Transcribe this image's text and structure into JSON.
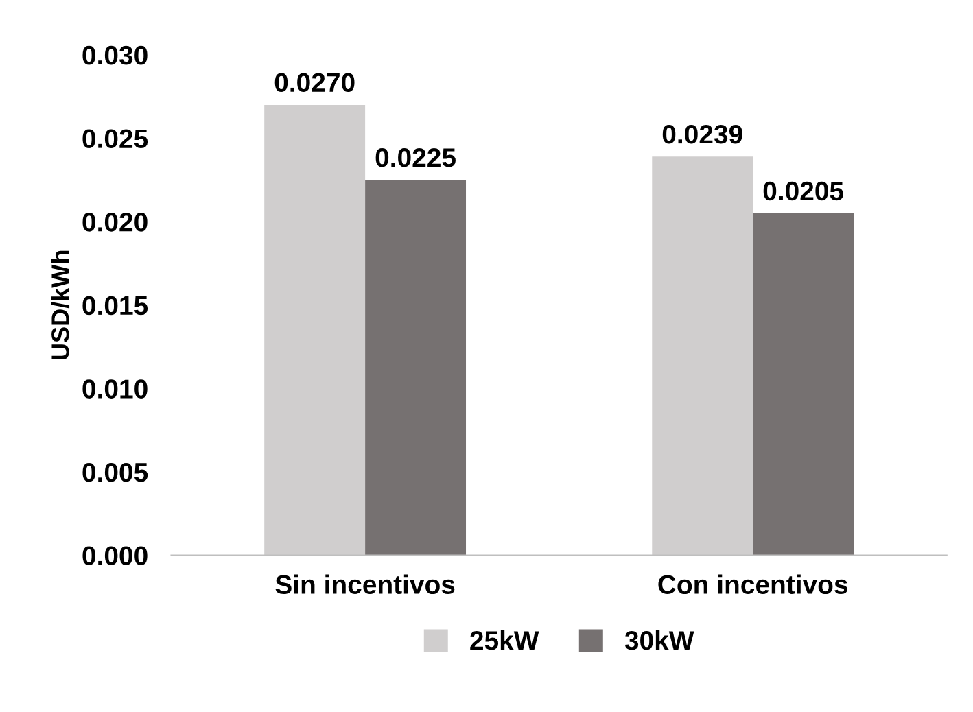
{
  "chart_data": {
    "type": "bar",
    "ylabel": "USD/kWh",
    "categories": [
      "Sin incentivos",
      "Con incentivos"
    ],
    "series": [
      {
        "name": "25kW",
        "color": "#d0cece",
        "values": [
          0.027,
          0.0239
        ],
        "value_labels": [
          "0.0270",
          "0.0239"
        ]
      },
      {
        "name": "30kW",
        "color": "#767171",
        "values": [
          0.0225,
          0.0205
        ],
        "value_labels": [
          "0.0225",
          "0.0205"
        ]
      }
    ],
    "ylim": [
      0,
      0.03
    ],
    "yticks": [
      {
        "value": 0,
        "label": "0.000"
      },
      {
        "value": 0.005,
        "label": "0.005"
      },
      {
        "value": 0.01,
        "label": "0.010"
      },
      {
        "value": 0.015,
        "label": "0.015"
      },
      {
        "value": 0.02,
        "label": "0.020"
      },
      {
        "value": 0.025,
        "label": "0.025"
      },
      {
        "value": 0.03,
        "label": "0.030"
      }
    ],
    "grid": false,
    "legend": "bottom"
  }
}
